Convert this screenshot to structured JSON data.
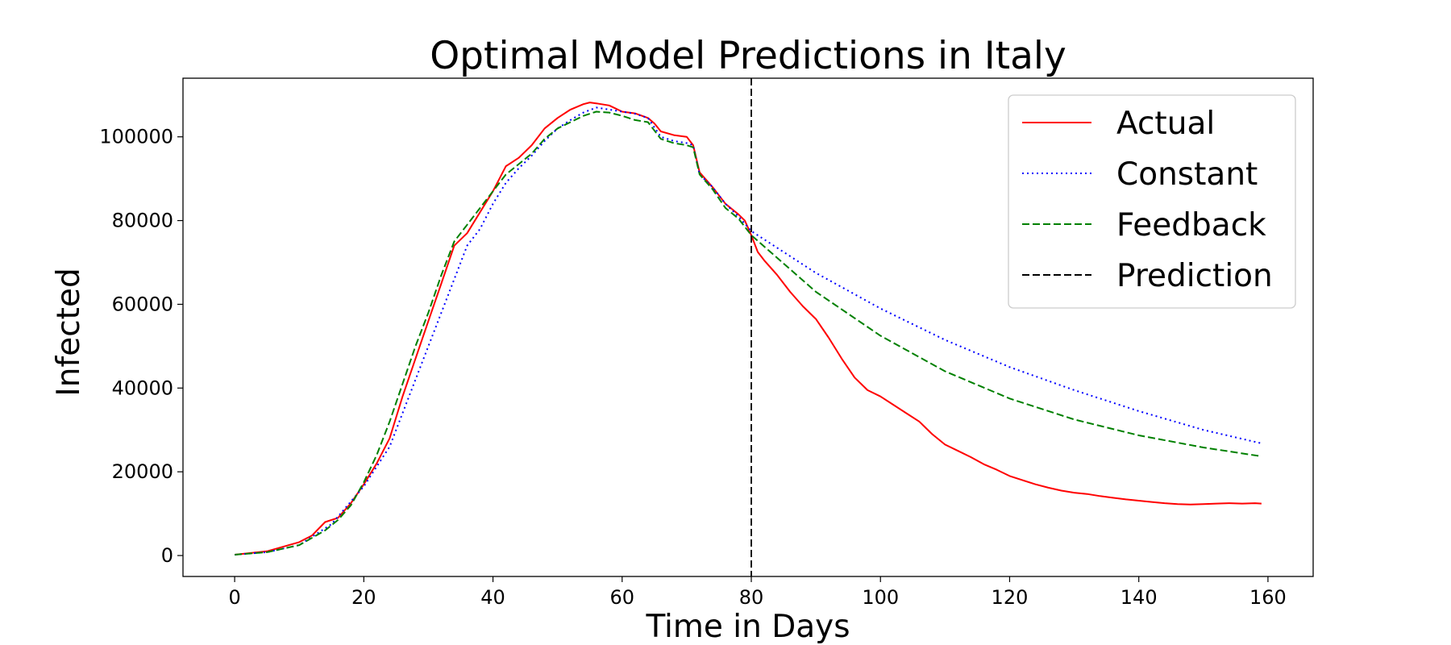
{
  "chart_data": {
    "type": "line",
    "title": "Optimal Model Predictions in Italy",
    "xlabel": "Time in Days",
    "ylabel": "Infected",
    "xlim": [
      -8,
      167
    ],
    "ylim": [
      -5000,
      114000
    ],
    "xticks": [
      0,
      20,
      40,
      60,
      80,
      100,
      120,
      140,
      160
    ],
    "yticks": [
      0,
      20000,
      40000,
      60000,
      80000,
      100000
    ],
    "grid": false,
    "legend": "upper right",
    "prediction_day": 80,
    "series": [
      {
        "name": "Actual",
        "color": "#ff0000",
        "style": "solid",
        "x": [
          0,
          5,
          10,
          12,
          14,
          16,
          18,
          20,
          22,
          24,
          26,
          28,
          30,
          32,
          34,
          36,
          38,
          40,
          41,
          42,
          44,
          46,
          48,
          50,
          52,
          54,
          55,
          56,
          58,
          60,
          62,
          64,
          65,
          66,
          68,
          70,
          71,
          72,
          74,
          76,
          78,
          79,
          80,
          81,
          82,
          84,
          86,
          88,
          90,
          92,
          94,
          96,
          98,
          100,
          102,
          104,
          106,
          108,
          110,
          112,
          114,
          116,
          118,
          120,
          122,
          124,
          126,
          128,
          130,
          132,
          134,
          136,
          138,
          140,
          142,
          144,
          146,
          148,
          150,
          152,
          154,
          156,
          158,
          159
        ],
        "y": [
          200,
          1000,
          3200,
          4800,
          8000,
          9000,
          12500,
          17000,
          22000,
          28000,
          38000,
          47000,
          56000,
          65000,
          74000,
          77000,
          82000,
          87000,
          90000,
          93000,
          95000,
          98000,
          102000,
          104500,
          106500,
          107800,
          108200,
          108000,
          107500,
          106000,
          105600,
          104500,
          103200,
          101300,
          100400,
          100000,
          98000,
          91500,
          88000,
          84000,
          81500,
          80000,
          76500,
          72500,
          70500,
          67000,
          63000,
          59500,
          56500,
          52000,
          47000,
          42500,
          39500,
          38000,
          36000,
          34000,
          32000,
          29000,
          26500,
          25000,
          23500,
          21800,
          20500,
          19000,
          18000,
          17000,
          16200,
          15500,
          15000,
          14700,
          14200,
          13800,
          13400,
          13100,
          12800,
          12500,
          12300,
          12200,
          12300,
          12400,
          12500,
          12400,
          12500,
          12400
        ]
      },
      {
        "name": "Constant",
        "color": "#0000ff",
        "style": "dotted",
        "x": [
          0,
          5,
          10,
          15,
          20,
          24,
          28,
          30,
          32,
          34,
          36,
          38,
          40,
          42,
          44,
          46,
          48,
          50,
          52,
          54,
          56,
          58,
          60,
          62,
          64,
          66,
          68,
          70,
          71,
          72,
          74,
          76,
          78,
          80,
          90,
          100,
          110,
          120,
          130,
          140,
          150,
          159
        ],
        "y": [
          200,
          800,
          2500,
          7500,
          16500,
          26000,
          42000,
          50000,
          58000,
          66000,
          74000,
          78000,
          84000,
          89000,
          92500,
          95500,
          99000,
          102000,
          104000,
          105800,
          107000,
          106500,
          106000,
          105500,
          104500,
          100000,
          99000,
          98500,
          98000,
          91000,
          88000,
          84000,
          81000,
          77500,
          67500,
          59000,
          51500,
          45000,
          39500,
          34500,
          30000,
          26800
        ]
      },
      {
        "name": "Feedback",
        "color": "#008000",
        "style": "dashed",
        "x": [
          0,
          5,
          10,
          14,
          16,
          18,
          20,
          22,
          24,
          26,
          28,
          30,
          32,
          34,
          36,
          38,
          40,
          42,
          44,
          46,
          48,
          50,
          52,
          54,
          56,
          58,
          60,
          62,
          64,
          66,
          68,
          70,
          71,
          72,
          74,
          76,
          78,
          80,
          90,
          100,
          110,
          120,
          130,
          140,
          150,
          159
        ],
        "y": [
          200,
          800,
          2500,
          6000,
          8500,
          12000,
          17500,
          24000,
          32000,
          41000,
          50000,
          58000,
          67000,
          75000,
          79000,
          83000,
          87000,
          91000,
          93500,
          96000,
          99500,
          102000,
          103500,
          105000,
          106000,
          105800,
          105000,
          104000,
          103500,
          99500,
          98500,
          98000,
          97500,
          91000,
          87500,
          83000,
          80500,
          76500,
          63000,
          52500,
          44000,
          37500,
          32500,
          28700,
          25800,
          23700
        ]
      },
      {
        "name": "Prediction",
        "color": "#000000",
        "style": "dashed-vline"
      }
    ]
  }
}
